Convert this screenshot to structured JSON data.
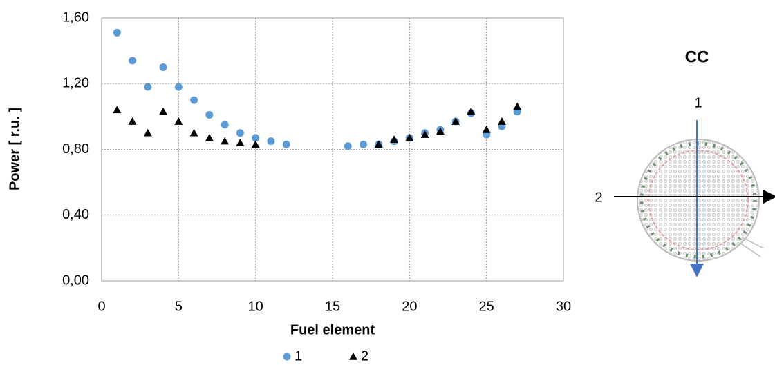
{
  "chart_data": {
    "type": "scatter",
    "x_label": "Fuel element",
    "y_label": "Power [ r.u. ]",
    "xlim": [
      0,
      30
    ],
    "xticks": [
      0,
      5,
      10,
      15,
      20,
      25,
      30
    ],
    "ylim": [
      0,
      1.6
    ],
    "yticks": [
      {
        "value": 0,
        "label": "0,00"
      },
      {
        "value": 0.4,
        "label": "0,40"
      },
      {
        "value": 0.8,
        "label": "0,80"
      },
      {
        "value": 1.2,
        "label": "1,20"
      },
      {
        "value": 1.6,
        "label": "1,60"
      }
    ],
    "grid": true,
    "legend": "bottom",
    "series": [
      {
        "name": "1",
        "color": "#5b9bd5",
        "marker": "circle",
        "x": [
          1,
          2,
          3,
          4,
          5,
          6,
          7,
          8,
          9,
          10,
          11,
          12,
          16,
          17,
          18,
          19,
          20,
          21,
          22,
          23,
          24,
          25,
          26,
          27
        ],
        "values": [
          1.51,
          1.34,
          1.18,
          1.3,
          1.18,
          1.1,
          1.01,
          0.95,
          0.9,
          0.87,
          0.85,
          0.83,
          0.82,
          0.83,
          0.83,
          0.85,
          0.87,
          0.9,
          0.92,
          0.97,
          1.02,
          0.89,
          0.94,
          1.03
        ]
      },
      {
        "name": "2",
        "color": "#000000",
        "marker": "triangle",
        "x": [
          1,
          2,
          3,
          4,
          5,
          6,
          7,
          8,
          9,
          10,
          18,
          19,
          20,
          21,
          22,
          23,
          24,
          25,
          26,
          27
        ],
        "values": [
          1.04,
          0.97,
          0.9,
          1.03,
          0.97,
          0.9,
          0.87,
          0.85,
          0.84,
          0.83,
          0.83,
          0.86,
          0.87,
          0.89,
          0.91,
          0.97,
          1.03,
          0.92,
          0.97,
          1.06
        ]
      }
    ]
  },
  "diagram": {
    "title": "CC",
    "labels": [
      "1",
      "2"
    ]
  }
}
